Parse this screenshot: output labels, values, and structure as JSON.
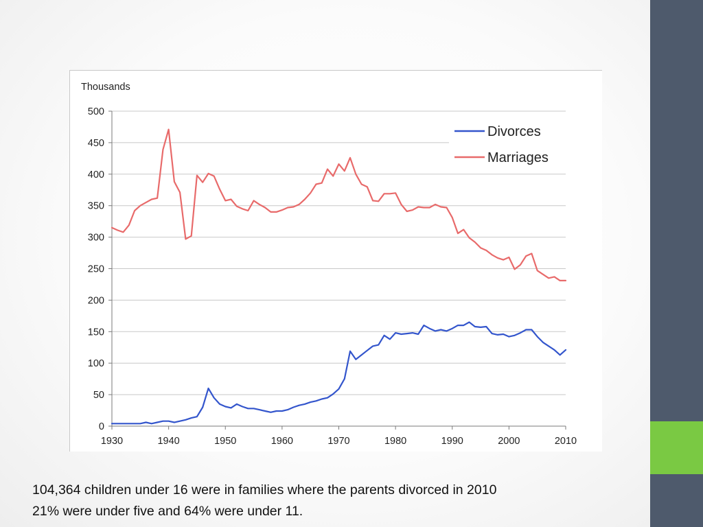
{
  "theme": {
    "sidebar_color": "#4e5a6c",
    "accent_color": "#7ac943"
  },
  "caption": {
    "line1": "104,364 children under 16 were in families where the parents divorced in 2010",
    "line2": "21% were under five and 64% were under 11."
  },
  "chart_data": {
    "type": "line",
    "title": "",
    "ylabel": "Thousands",
    "xlabel": "",
    "xlim": [
      1930,
      2010
    ],
    "ylim": [
      0,
      500
    ],
    "x_ticks": [
      1930,
      1940,
      1950,
      1960,
      1970,
      1980,
      1990,
      2000,
      2010
    ],
    "y_ticks": [
      0,
      50,
      100,
      150,
      200,
      250,
      300,
      350,
      400,
      450,
      500
    ],
    "grid": "horizontal",
    "legend_position": "top-right",
    "series": [
      {
        "name": "Divorces",
        "color": "#3355cc",
        "x": [
          1930,
          1931,
          1932,
          1933,
          1934,
          1935,
          1936,
          1937,
          1938,
          1939,
          1940,
          1941,
          1942,
          1943,
          1944,
          1945,
          1946,
          1947,
          1948,
          1949,
          1950,
          1951,
          1952,
          1953,
          1954,
          1955,
          1956,
          1957,
          1958,
          1959,
          1960,
          1961,
          1962,
          1963,
          1964,
          1965,
          1966,
          1967,
          1968,
          1969,
          1970,
          1971,
          1972,
          1973,
          1974,
          1975,
          1976,
          1977,
          1978,
          1979,
          1980,
          1981,
          1982,
          1983,
          1984,
          1985,
          1986,
          1987,
          1988,
          1989,
          1990,
          1991,
          1992,
          1993,
          1994,
          1995,
          1996,
          1997,
          1998,
          1999,
          2000,
          2001,
          2002,
          2003,
          2004,
          2005,
          2006,
          2007,
          2008,
          2009,
          2010
        ],
        "values": [
          4,
          4,
          4,
          4,
          4,
          4,
          6,
          4,
          6,
          8,
          8,
          6,
          8,
          10,
          13,
          15,
          30,
          60,
          45,
          35,
          31,
          29,
          35,
          31,
          28,
          28,
          26,
          24,
          22,
          24,
          24,
          26,
          30,
          33,
          35,
          38,
          40,
          43,
          45,
          51,
          59,
          75,
          119,
          106,
          113,
          120,
          127,
          129,
          144,
          138,
          148,
          146,
          147,
          148,
          146,
          160,
          155,
          151,
          153,
          151,
          155,
          160,
          160,
          165,
          158,
          157,
          158,
          147,
          145,
          146,
          142,
          144,
          148,
          153,
          153,
          142,
          133,
          127,
          121,
          113,
          121
        ]
      },
      {
        "name": "Marriages",
        "color": "#e86a6a",
        "x": [
          1930,
          1931,
          1932,
          1933,
          1934,
          1935,
          1936,
          1937,
          1938,
          1939,
          1940,
          1941,
          1942,
          1943,
          1944,
          1945,
          1946,
          1947,
          1948,
          1949,
          1950,
          1951,
          1952,
          1953,
          1954,
          1955,
          1956,
          1957,
          1958,
          1959,
          1960,
          1961,
          1962,
          1963,
          1964,
          1965,
          1966,
          1967,
          1968,
          1969,
          1970,
          1971,
          1972,
          1973,
          1974,
          1975,
          1976,
          1977,
          1978,
          1979,
          1980,
          1981,
          1982,
          1983,
          1984,
          1985,
          1986,
          1987,
          1988,
          1989,
          1990,
          1991,
          1992,
          1993,
          1994,
          1995,
          1996,
          1997,
          1998,
          1999,
          2000,
          2001,
          2002,
          2003,
          2004,
          2005,
          2006,
          2007,
          2008,
          2009,
          2010
        ],
        "values": [
          315,
          311,
          308,
          319,
          342,
          350,
          355,
          360,
          362,
          439,
          471,
          388,
          371,
          297,
          302,
          398,
          387,
          401,
          397,
          376,
          358,
          360,
          349,
          345,
          342,
          358,
          352,
          347,
          340,
          340,
          343,
          347,
          348,
          352,
          360,
          370,
          384,
          386,
          408,
          397,
          416,
          405,
          426,
          400,
          384,
          380,
          358,
          357,
          369,
          369,
          370,
          352,
          341,
          343,
          348,
          347,
          347,
          352,
          348,
          347,
          331,
          306,
          312,
          299,
          292,
          283,
          279,
          272,
          267,
          264,
          268,
          249,
          256,
          270,
          274,
          247,
          241,
          235,
          237,
          231,
          231
        ]
      }
    ]
  }
}
